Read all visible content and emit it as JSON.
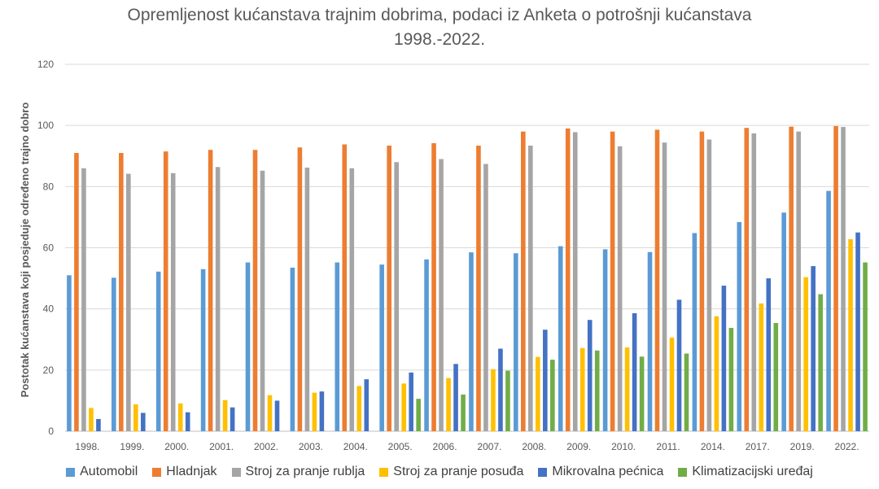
{
  "chart_data": {
    "type": "bar",
    "title_lines": [
      "Opremljenost kućanstava trajnim dobrima, podaci iz Anketa o potrošnji kućanstava",
      "1998.-2022."
    ],
    "ylabel": "Postotak kućanstava koji posjeduje određeno trajno dobro",
    "xlabel": "",
    "ylim": [
      0,
      120
    ],
    "yticks": [
      0,
      20,
      40,
      60,
      80,
      100,
      120
    ],
    "grid": true,
    "legend_position": "bottom",
    "categories": [
      "1998.",
      "1999.",
      "2000.",
      "2001.",
      "2002.",
      "2003.",
      "2004.",
      "2005.",
      "2006.",
      "2007.",
      "2008.",
      "2009.",
      "2010.",
      "2011.",
      "2014.",
      "2017.",
      "2019.",
      "2022."
    ],
    "series": [
      {
        "name": "Automobil",
        "color": "#5B9BD5",
        "values": [
          51,
          50.2,
          52.2,
          53,
          55.2,
          53.5,
          55.2,
          54.5,
          56.2,
          58.5,
          58.2,
          60.5,
          59.5,
          58.6,
          64.8,
          68.4,
          71.5,
          78.6
        ]
      },
      {
        "name": "Hladnjak",
        "color": "#ED7D31",
        "values": [
          91,
          91,
          91.5,
          92,
          92,
          92.8,
          93.8,
          93.4,
          94.2,
          93.4,
          98,
          99,
          98,
          98.6,
          98,
          99.2,
          99.6,
          99.8
        ]
      },
      {
        "name": "Stroj za pranje rublja",
        "color": "#A5A5A5",
        "values": [
          86,
          84.2,
          84.4,
          86.4,
          85.2,
          86.2,
          86,
          88,
          89,
          87.4,
          93.4,
          97.8,
          93.2,
          94.4,
          95.4,
          97.4,
          98,
          99.5
        ]
      },
      {
        "name": "Stroj za pranje posuđa",
        "color": "#FFC000",
        "values": [
          7.6,
          8.8,
          9.1,
          10.2,
          11.8,
          12.6,
          14.8,
          15.6,
          17.4,
          20.3,
          24.3,
          27.2,
          27.4,
          30.6,
          37.6,
          41.8,
          50.4,
          62.8
        ]
      },
      {
        "name": "Mikrovalna pećnica",
        "color": "#4472C4",
        "values": [
          4,
          6,
          6.2,
          7.8,
          10,
          13,
          17,
          19.2,
          22,
          27,
          33.2,
          36.4,
          38.6,
          43,
          47.6,
          50,
          54,
          65
        ]
      },
      {
        "name": "Klimatizacijski uređaj",
        "color": "#70AD47",
        "values": [
          0,
          0,
          0,
          0,
          0,
          0,
          0,
          10.6,
          12,
          19.8,
          23.4,
          26.4,
          24.4,
          25.4,
          33.8,
          35.4,
          44.8,
          55.2
        ]
      }
    ]
  }
}
